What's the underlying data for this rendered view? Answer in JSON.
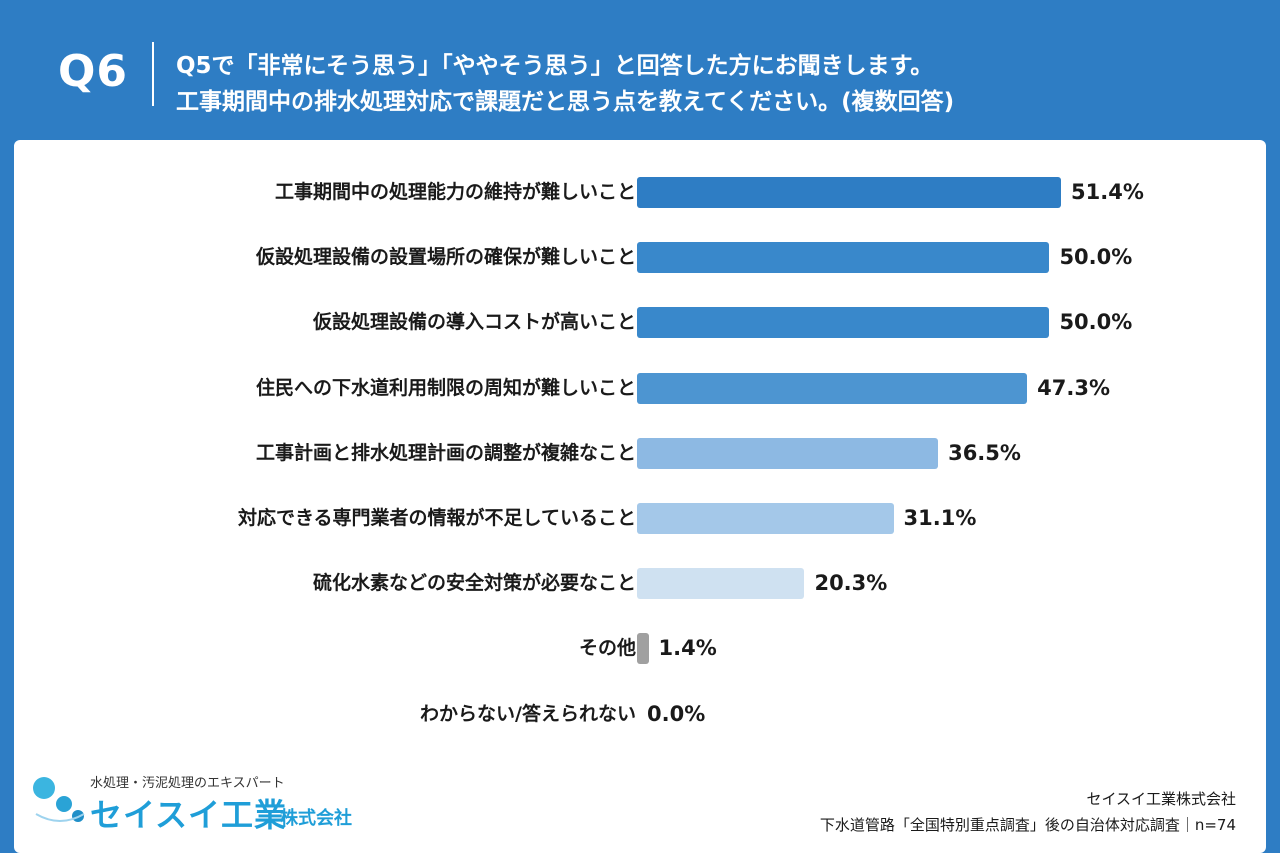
{
  "header": {
    "question_number": "Q6",
    "question_line1": "Q5で「非常にそう思う」「ややそう思う」と回答した方にお聞きします。",
    "question_line2": "工事期間中の排水処理対応で課題だと思う点を教えてください。(複数回答)"
  },
  "chart_data": {
    "type": "bar",
    "orientation": "horizontal",
    "categories": [
      "工事期間中の処理能力の維持が難しいこと",
      "仮設処理設備の設置場所の確保が難しいこと",
      "仮設処理設備の導入コストが高いこと",
      "住民への下水道利用制限の周知が難しいこと",
      "工事計画と排水処理計画の調整が複雑なこと",
      "対応できる専門業者の情報が不足していること",
      "硫化水素などの安全対策が必要なこと",
      "その他",
      "わからない/答えられない"
    ],
    "values": [
      51.4,
      50.0,
      50.0,
      47.3,
      36.5,
      31.1,
      20.3,
      1.4,
      0.0
    ],
    "value_labels": [
      "51.4%",
      "50.0%",
      "50.0%",
      "47.3%",
      "36.5%",
      "31.1%",
      "20.3%",
      "1.4%",
      "0.0%"
    ],
    "colors": [
      "#2e7dc4",
      "#3988cb",
      "#3988cb",
      "#4d95d1",
      "#8db9e3",
      "#a4c8e9",
      "#cfe1f1",
      "#a0a0a0",
      "#a0a0a0"
    ],
    "unit": "%",
    "xlim": [
      0,
      60
    ],
    "n": "n=74"
  },
  "logo": {
    "tagline": "水処理・汚泥処理のエキスパート",
    "name": "セイスイ工業",
    "suffix": "株式会社"
  },
  "source": {
    "company": "セイスイ工業株式会社",
    "survey": "下水道管路「全国特別重点調査」後の自治体対応調査｜n=74"
  }
}
